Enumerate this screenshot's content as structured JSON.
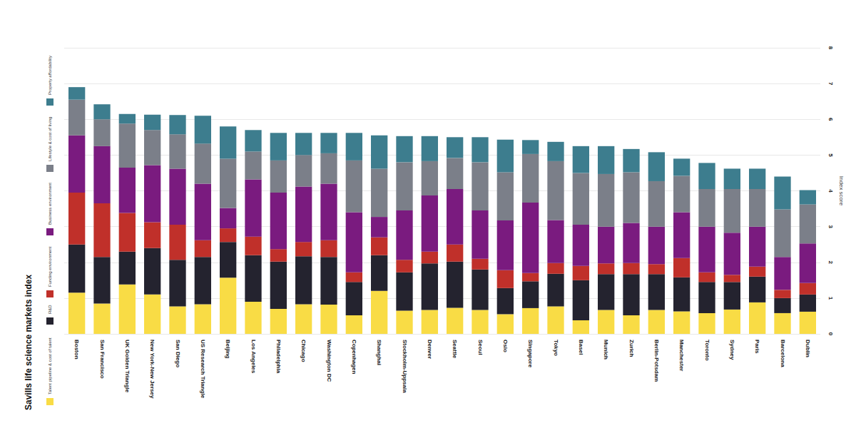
{
  "chart_data": {
    "type": "bar",
    "title": "Savills life science markets index",
    "y_label": "Index score",
    "stacked": true,
    "grid": true,
    "ylim": [
      0,
      8
    ],
    "yticks": [
      0,
      1,
      2,
      3,
      4,
      5,
      6,
      7,
      8
    ],
    "categories": [
      "Boston",
      "San Francisco",
      "UK Golden Triangle",
      "New York-New Jersey",
      "San Diego",
      "US Research Triangle",
      "Beijing",
      "Los Angeles",
      "Philadelphia",
      "Chicago",
      "Washington DC",
      "Copenhagen",
      "Shanghai",
      "Stockholm-Uppsala",
      "Denver",
      "Seattle",
      "Seoul",
      "Oslo",
      "Singapore",
      "Tokyo",
      "Basel",
      "Munich",
      "Zurich",
      "Berlin-Potsdam",
      "Manchester",
      "Toronto",
      "Sydney",
      "Paris",
      "Barcelona",
      "Dublin"
    ],
    "series": [
      {
        "name": "Talent pipeline & cost of talent",
        "color": "#f9dc45",
        "values": [
          1.15,
          0.85,
          1.38,
          1.1,
          0.77,
          0.83,
          1.57,
          0.9,
          0.7,
          0.83,
          0.82,
          0.52,
          1.2,
          0.65,
          0.67,
          0.73,
          0.67,
          0.55,
          0.72,
          0.77,
          0.38,
          0.67,
          0.52,
          0.67,
          0.63,
          0.58,
          0.68,
          0.88,
          0.58,
          0.62
        ]
      },
      {
        "name": "R&D",
        "color": "#24232f",
        "values": [
          1.35,
          1.3,
          0.92,
          1.3,
          1.3,
          1.32,
          1.0,
          1.3,
          1.32,
          1.34,
          1.33,
          0.93,
          1.0,
          1.07,
          1.3,
          1.29,
          1.13,
          0.73,
          0.75,
          0.91,
          1.12,
          1.0,
          1.15,
          1.0,
          0.95,
          0.87,
          0.77,
          0.72,
          0.42,
          0.48
        ]
      },
      {
        "name": "Funding environment",
        "color": "#c0302a",
        "values": [
          1.45,
          1.5,
          1.08,
          0.72,
          0.98,
          0.47,
          0.38,
          0.52,
          0.35,
          0.4,
          0.47,
          0.27,
          0.5,
          0.35,
          0.33,
          0.48,
          0.3,
          0.5,
          0.23,
          0.3,
          0.4,
          0.3,
          0.31,
          0.28,
          0.54,
          0.27,
          0.2,
          0.28,
          0.23,
          0.32
        ]
      },
      {
        "name": "Business environment",
        "color": "#7a1b7f",
        "values": [
          1.6,
          1.6,
          1.27,
          1.6,
          1.57,
          1.58,
          0.57,
          1.6,
          1.58,
          1.55,
          1.58,
          1.68,
          0.57,
          1.38,
          1.57,
          1.55,
          1.35,
          1.39,
          1.97,
          1.2,
          1.15,
          1.03,
          1.12,
          1.05,
          1.28,
          1.28,
          1.18,
          1.12,
          0.92,
          1.11
        ]
      },
      {
        "name": "Lifestyle & cost of living",
        "color": "#7b7f89",
        "values": [
          1.0,
          0.75,
          1.23,
          0.98,
          0.96,
          1.12,
          1.38,
          0.78,
          0.9,
          0.88,
          0.85,
          1.45,
          1.35,
          1.35,
          0.96,
          0.87,
          1.35,
          1.35,
          1.36,
          1.65,
          1.45,
          1.47,
          1.42,
          1.27,
          1.02,
          1.05,
          1.22,
          1.05,
          1.33,
          1.09
        ]
      },
      {
        "name": "Property affordability",
        "color": "#3d7d8e",
        "values": [
          0.35,
          0.42,
          0.27,
          0.43,
          0.54,
          0.78,
          0.9,
          0.6,
          0.77,
          0.62,
          0.57,
          0.77,
          0.93,
          0.73,
          0.7,
          0.58,
          0.7,
          0.91,
          0.39,
          0.54,
          0.75,
          0.78,
          0.65,
          0.81,
          0.48,
          0.73,
          0.57,
          0.57,
          0.92,
          0.4
        ]
      }
    ]
  }
}
